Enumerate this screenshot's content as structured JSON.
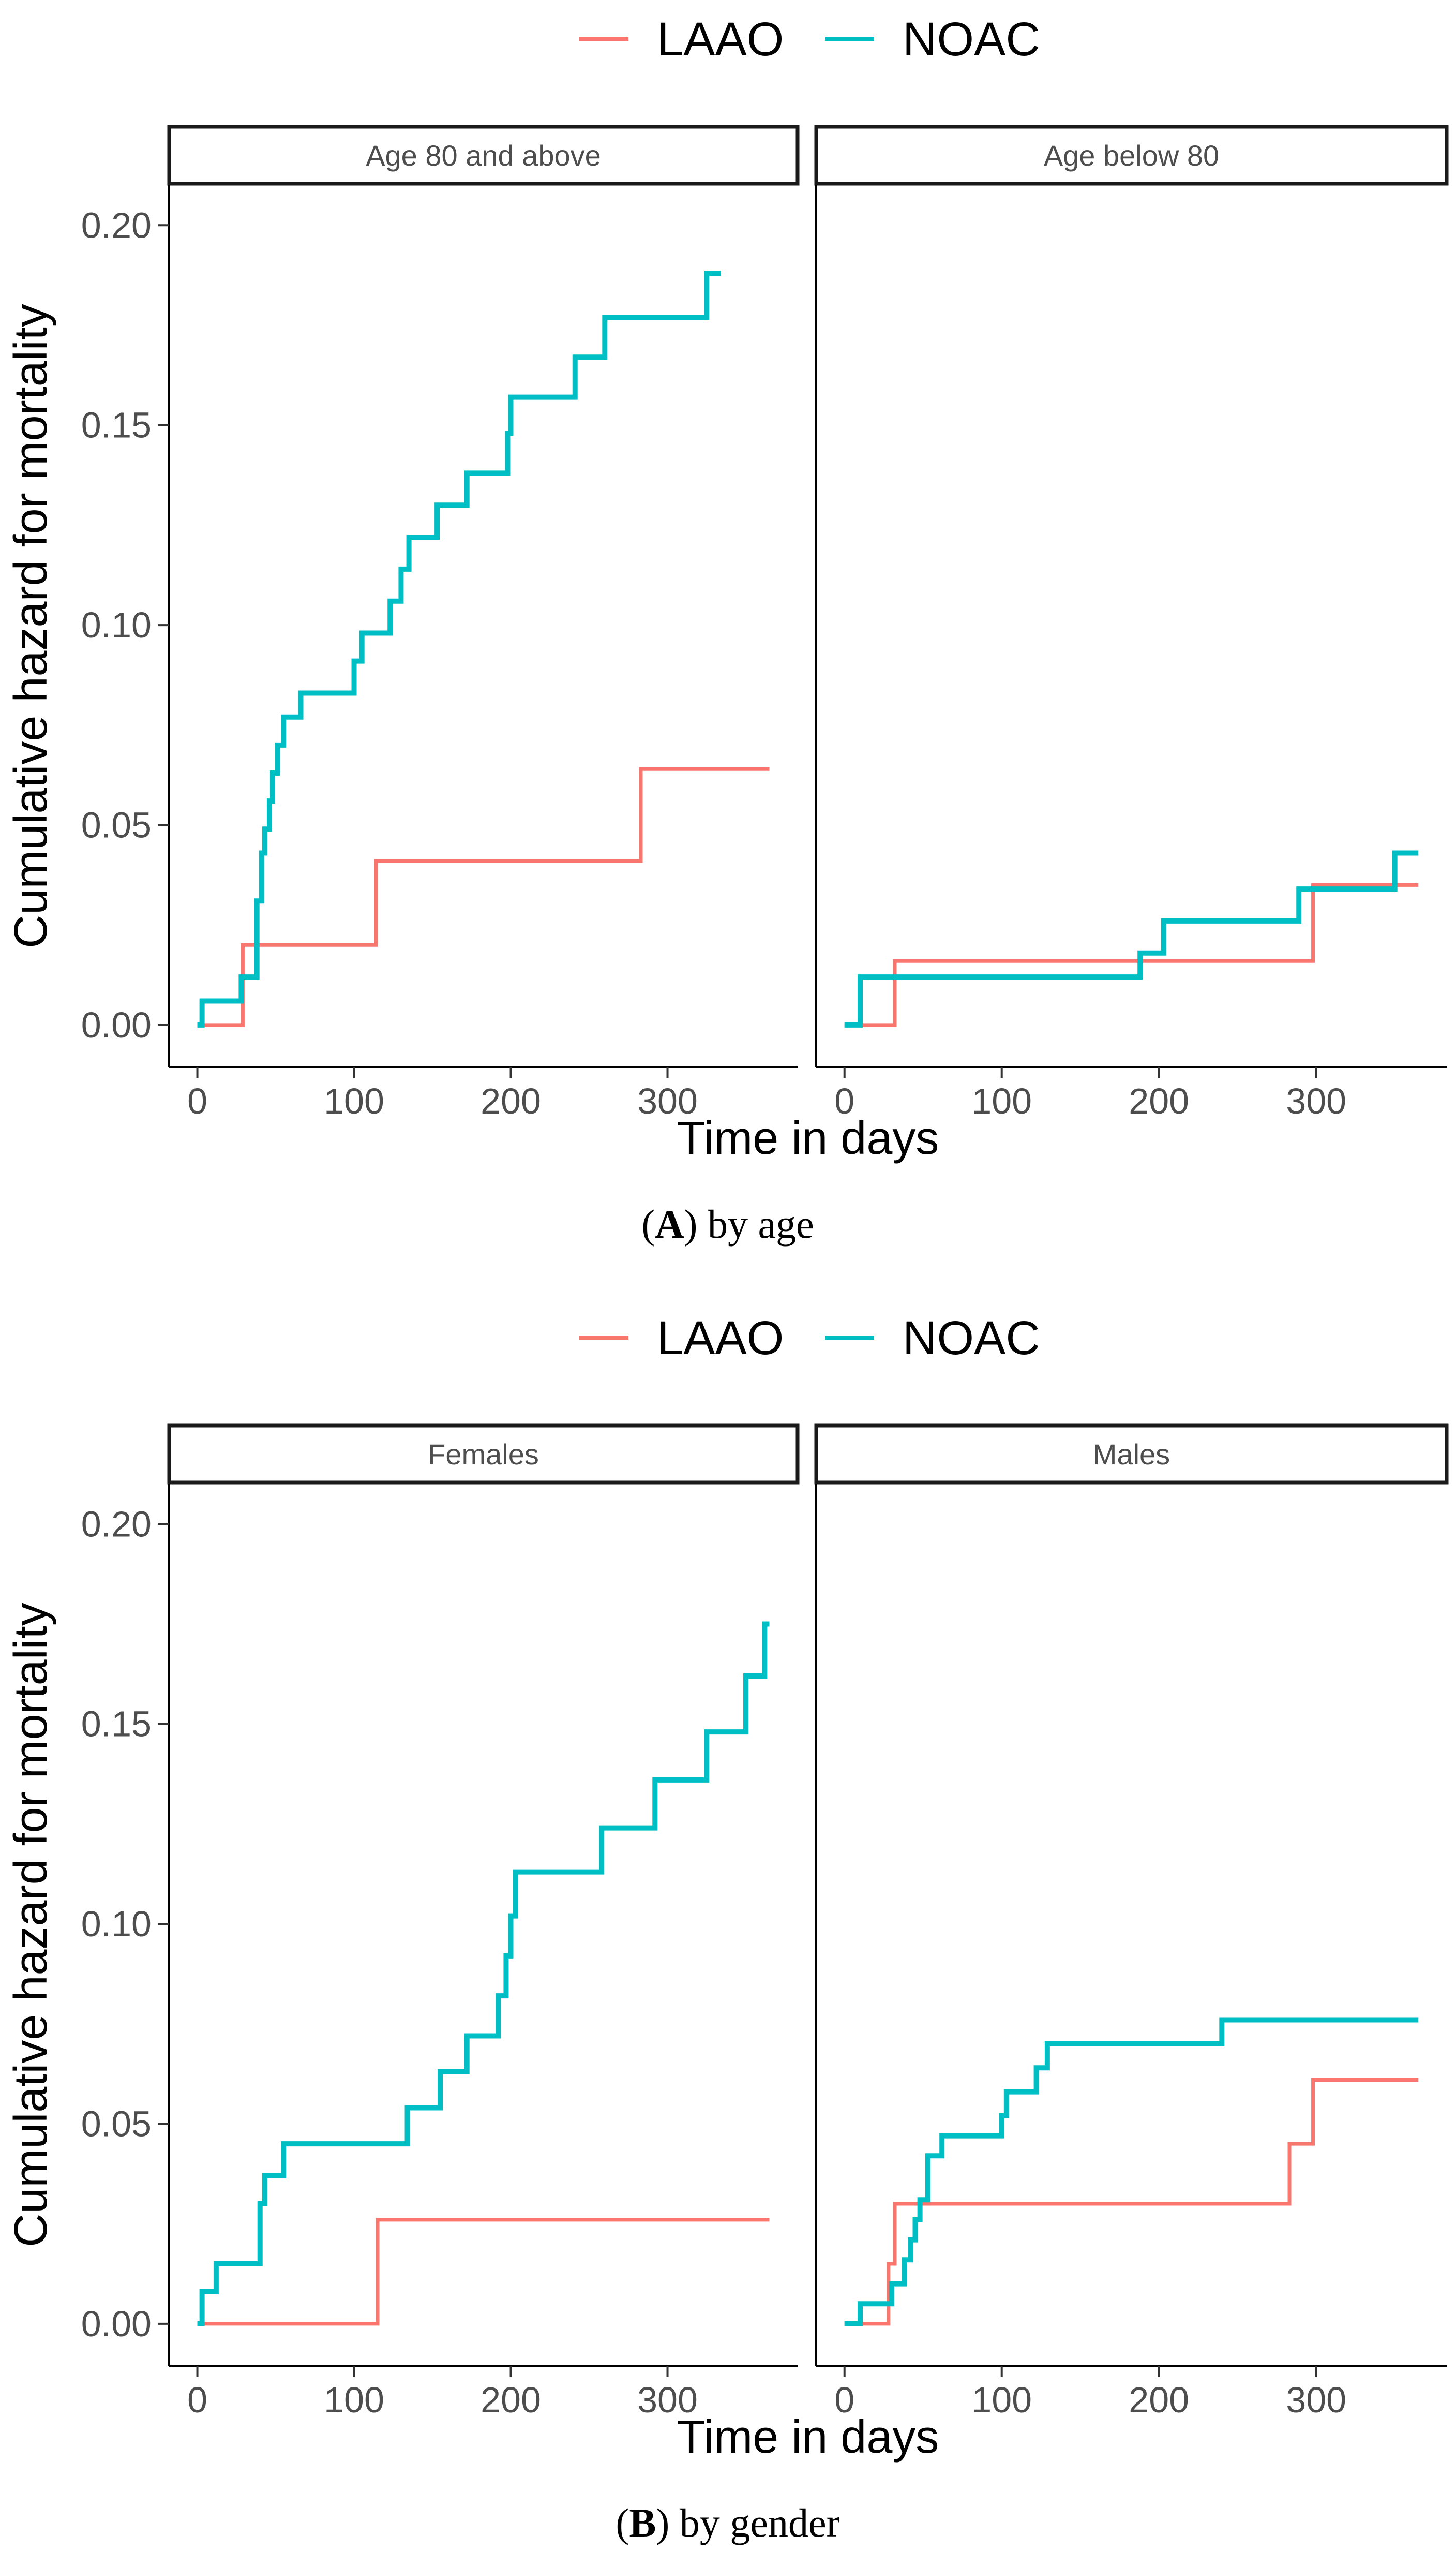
{
  "colors": {
    "laao": "#F8766D",
    "noac": "#00BFC4",
    "axis": "#4d4d4d"
  },
  "chart_data": [
    {
      "type": "line",
      "subtype": "step",
      "caption_letter": "A",
      "caption_rest": ") by age",
      "caption_open": "(",
      "legend": [
        "LAAO",
        "NOAC"
      ],
      "xlabel": "Time in days",
      "ylabel": "Cumulative hazard for mortality",
      "xlim": [
        -18,
        383
      ],
      "ylim": [
        -0.0105,
        0.21
      ],
      "xticks": [
        0,
        100,
        200,
        300
      ],
      "xtick_labels": [
        "0",
        "100",
        "200",
        "300"
      ],
      "yticks": [
        0,
        0.05,
        0.1,
        0.15,
        0.2
      ],
      "ytick_labels": [
        "0.00",
        "0.05",
        "0.10",
        "0.15",
        "0.20"
      ],
      "panels": [
        {
          "strip": "Age 80 and above",
          "series": [
            {
              "name": "LAAO",
              "x": [
                0,
                29,
                114,
                283,
                365
              ],
              "y": [
                0,
                0.02,
                0.041,
                0.064,
                0.064
              ]
            },
            {
              "name": "NOAC",
              "x": [
                0,
                3,
                28,
                38,
                41,
                43,
                46,
                48,
                51,
                55,
                60,
                66,
                100,
                105,
                123,
                130,
                135,
                153,
                172,
                198,
                200,
                241,
                260,
                325,
                334
              ],
              "y": [
                0,
                0.006,
                0.012,
                0.031,
                0.043,
                0.049,
                0.056,
                0.063,
                0.07,
                0.077,
                0.077,
                0.083,
                0.091,
                0.098,
                0.106,
                0.114,
                0.122,
                0.13,
                0.138,
                0.148,
                0.157,
                0.167,
                0.177,
                0.188,
                0.188
              ]
            }
          ]
        },
        {
          "strip": "Age below 80",
          "series": [
            {
              "name": "LAAO",
              "x": [
                0,
                32,
                298,
                365
              ],
              "y": [
                0,
                0.016,
                0.035,
                0.035
              ]
            },
            {
              "name": "NOAC",
              "x": [
                0,
                10,
                188,
                203,
                289,
                350,
                365
              ],
              "y": [
                0,
                0.012,
                0.018,
                0.026,
                0.034,
                0.043,
                0.043
              ]
            }
          ]
        }
      ]
    },
    {
      "type": "line",
      "subtype": "step",
      "caption_letter": "B",
      "caption_rest": ") by gender",
      "caption_open": "(",
      "legend": [
        "LAAO",
        "NOAC"
      ],
      "xlabel": "Time in days",
      "ylabel": "Cumulative hazard for mortality",
      "xlim": [
        -18,
        383
      ],
      "ylim": [
        -0.0105,
        0.21
      ],
      "xticks": [
        0,
        100,
        200,
        300
      ],
      "xtick_labels": [
        "0",
        "100",
        "200",
        "300"
      ],
      "yticks": [
        0,
        0.05,
        0.1,
        0.15,
        0.2
      ],
      "ytick_labels": [
        "0.00",
        "0.05",
        "0.10",
        "0.15",
        "0.20"
      ],
      "panels": [
        {
          "strip": "Females",
          "series": [
            {
              "name": "LAAO",
              "x": [
                0,
                115,
                365
              ],
              "y": [
                0,
                0.026,
                0.026
              ]
            },
            {
              "name": "NOAC",
              "x": [
                0,
                3,
                12,
                40,
                43,
                55,
                134,
                155,
                172,
                192,
                197,
                200,
                203,
                258,
                292,
                325,
                350,
                362,
                365
              ],
              "y": [
                0,
                0.008,
                0.015,
                0.03,
                0.037,
                0.045,
                0.054,
                0.063,
                0.072,
                0.082,
                0.092,
                0.102,
                0.113,
                0.124,
                0.136,
                0.148,
                0.162,
                0.175,
                0.175
              ]
            }
          ]
        },
        {
          "strip": "Males",
          "series": [
            {
              "name": "LAAO",
              "x": [
                0,
                28,
                32,
                283,
                298,
                365
              ],
              "y": [
                0,
                0.015,
                0.03,
                0.045,
                0.061,
                0.061
              ]
            },
            {
              "name": "NOAC",
              "x": [
                0,
                10,
                30,
                38,
                42,
                45,
                48,
                53,
                62,
                100,
                103,
                110,
                122,
                129,
                240,
                365
              ],
              "y": [
                0,
                0.005,
                0.01,
                0.016,
                0.021,
                0.026,
                0.031,
                0.042,
                0.047,
                0.052,
                0.058,
                0.058,
                0.064,
                0.07,
                0.076,
                0.076
              ]
            }
          ]
        }
      ]
    }
  ]
}
